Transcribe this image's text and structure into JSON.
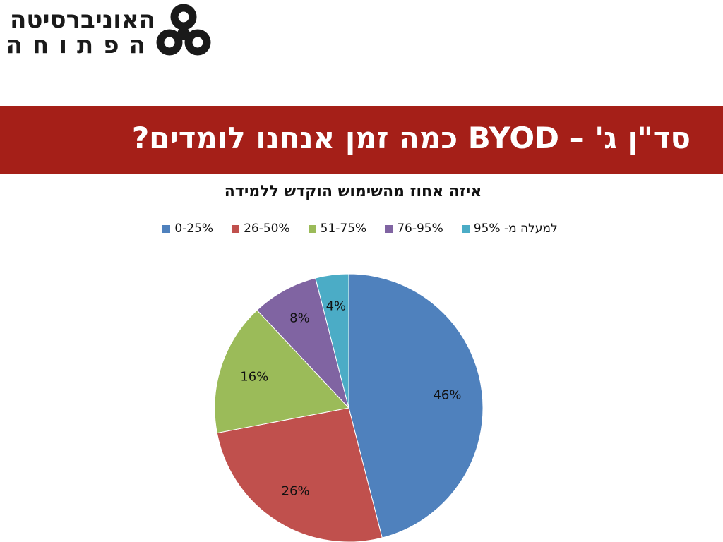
{
  "logo": {
    "line1": "האוניברסיטה",
    "line2": "הפתוחה"
  },
  "title_band": {
    "title": "סד\"ן ג' – BYOD כמה זמן אנחנו לומדים?"
  },
  "colors": {
    "title_band": "#a51f18",
    "series": [
      "#4f81bd",
      "#c0504d",
      "#9bbb59",
      "#8064a2",
      "#4bacc6"
    ]
  },
  "chart_data": {
    "type": "pie",
    "title": "איזה אחוז מהשימוש הוקדש ללמידה",
    "categories": [
      "0-25%",
      "26-50%",
      "51-75%",
      "76-95%",
      "למעלה מ- 95%"
    ],
    "values": [
      46,
      26,
      16,
      8,
      4
    ],
    "data_labels": [
      "46%",
      "26%",
      "16%",
      "8%",
      "4%"
    ],
    "legend_placement": "top",
    "start_angle": "12 o'clock",
    "direction": "clockwise"
  }
}
